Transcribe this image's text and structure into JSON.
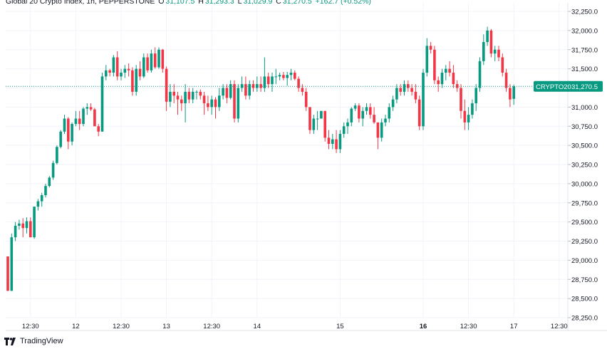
{
  "header": {
    "symbol_title": "Global 20 Crypto Index, 1h, PEPPERSTONE",
    "open_label": "O",
    "open_value": "31,107.5",
    "high_label": "H",
    "high_value": "31,293.3",
    "low_label": "L",
    "low_value": "31,029.9",
    "close_label": "C",
    "close_value": "31,270.5",
    "change": "+162.7 (+0.52%)"
  },
  "branding": {
    "name": "TradingView",
    "icon": "tradingview-logo-icon"
  },
  "price_tag": {
    "symbol": "CRYPTO20",
    "value": "31,270.5",
    "color": "#089981"
  },
  "colors": {
    "up": "#089981",
    "down": "#f23645",
    "grid": "#f0f3fa",
    "axis_text": "#131722"
  },
  "chart_data": {
    "type": "candlestick",
    "title": "Global 20 Crypto Index, 1h, PEPPERSTONE",
    "ylim": [
      28250,
      32250
    ],
    "y_ticks": [
      "32,250.0",
      "32,000.0",
      "31,750.0",
      "31,500.0",
      "31,250.0",
      "31,000.0",
      "30,750.0",
      "30,500.0",
      "30,250.0",
      "30,000.0",
      "29,750.0",
      "29,500.0",
      "29,250.0",
      "29,000.0",
      "28,750.0",
      "28,500.0",
      "28,250.0"
    ],
    "x_ticks": [
      {
        "label": "12:30",
        "bold": false,
        "bar": 6
      },
      {
        "label": "12",
        "bold": false,
        "bar": 18
      },
      {
        "label": "12:30",
        "bold": false,
        "bar": 30
      },
      {
        "label": "13",
        "bold": false,
        "bar": 42
      },
      {
        "label": "12:30",
        "bold": false,
        "bar": 54
      },
      {
        "label": "14",
        "bold": false,
        "bar": 66
      },
      {
        "label": "15",
        "bold": false,
        "bar": 88
      },
      {
        "label": "16",
        "bold": true,
        "bar": 110
      },
      {
        "label": "12:30",
        "bold": false,
        "bar": 122
      },
      {
        "label": "17",
        "bold": false,
        "bar": 134
      },
      {
        "label": "12:30",
        "bold": false,
        "bar": 146
      }
    ],
    "last_price": 31270.5,
    "candles": [
      [
        29050,
        29050,
        28600,
        28600
      ],
      [
        28600,
        29350,
        28600,
        29300
      ],
      [
        29300,
        29500,
        29250,
        29450
      ],
      [
        29450,
        29530,
        29400,
        29480
      ],
      [
        29480,
        29550,
        29300,
        29420
      ],
      [
        29420,
        29560,
        29350,
        29510
      ],
      [
        29510,
        29560,
        29300,
        29300
      ],
      [
        29300,
        29700,
        29280,
        29700
      ],
      [
        29700,
        29800,
        29650,
        29770
      ],
      [
        29770,
        29880,
        29700,
        29850
      ],
      [
        29850,
        30000,
        29820,
        29970
      ],
      [
        29970,
        30100,
        29950,
        30080
      ],
      [
        30080,
        30300,
        30050,
        30270
      ],
      [
        30270,
        30500,
        30250,
        30480
      ],
      [
        30480,
        30700,
        30460,
        30680
      ],
      [
        30680,
        30900,
        30650,
        30850
      ],
      [
        30850,
        30870,
        30450,
        30550
      ],
      [
        30550,
        30800,
        30500,
        30780
      ],
      [
        30780,
        30950,
        30750,
        30850
      ],
      [
        30850,
        30950,
        30700,
        30780
      ],
      [
        30780,
        31000,
        30750,
        30980
      ],
      [
        30980,
        31050,
        30900,
        31000
      ],
      [
        31000,
        31050,
        30950,
        30970
      ],
      [
        30970,
        30990,
        30750,
        30750
      ],
      [
        30750,
        30780,
        30620,
        30680
      ],
      [
        30680,
        31450,
        30680,
        31400
      ],
      [
        31400,
        31550,
        31350,
        31480
      ],
      [
        31480,
        31500,
        31400,
        31450
      ],
      [
        31450,
        31680,
        31400,
        31650
      ],
      [
        31650,
        31730,
        31350,
        31400
      ],
      [
        31400,
        31500,
        31350,
        31450
      ],
      [
        31450,
        31550,
        31380,
        31500
      ],
      [
        31500,
        31570,
        31400,
        31480
      ],
      [
        31480,
        31520,
        31150,
        31200
      ],
      [
        31200,
        31550,
        31150,
        31500
      ],
      [
        31500,
        31600,
        31350,
        31400
      ],
      [
        31400,
        31700,
        31380,
        31650
      ],
      [
        31650,
        31700,
        31450,
        31480
      ],
      [
        31480,
        31750,
        31450,
        31700
      ],
      [
        31700,
        31780,
        31500,
        31520
      ],
      [
        31520,
        31780,
        31500,
        31750
      ],
      [
        31750,
        31760,
        31450,
        31500
      ],
      [
        31500,
        31530,
        30950,
        31070
      ],
      [
        31070,
        31300,
        31000,
        31200
      ],
      [
        31200,
        31300,
        31050,
        31150
      ],
      [
        31150,
        31200,
        30900,
        31100
      ],
      [
        31100,
        31150,
        30950,
        31050
      ],
      [
        31050,
        31300,
        30800,
        31200
      ],
      [
        31200,
        31250,
        31050,
        31100
      ],
      [
        31100,
        31250,
        31050,
        31200
      ],
      [
        31200,
        31220,
        31100,
        31200
      ],
      [
        31200,
        31230,
        31100,
        31150
      ],
      [
        31150,
        31200,
        30900,
        31050
      ],
      [
        31050,
        31150,
        30950,
        31000
      ],
      [
        31000,
        31150,
        30900,
        31100
      ],
      [
        31100,
        31130,
        30850,
        31000
      ],
      [
        31000,
        31250,
        30950,
        31150
      ],
      [
        31150,
        31300,
        31100,
        31250
      ],
      [
        31250,
        31300,
        31050,
        31120
      ],
      [
        31120,
        31350,
        31100,
        31300
      ],
      [
        31300,
        31350,
        30800,
        30850
      ],
      [
        30850,
        31300,
        30800,
        31250
      ],
      [
        31250,
        31400,
        31200,
        31300
      ],
      [
        31300,
        31400,
        31100,
        31150
      ],
      [
        31150,
        31350,
        31100,
        31300
      ],
      [
        31300,
        31350,
        31200,
        31250
      ],
      [
        31250,
        31400,
        31200,
        31300
      ],
      [
        31300,
        31400,
        31200,
        31250
      ],
      [
        31250,
        31650,
        31200,
        31400
      ],
      [
        31400,
        31450,
        31250,
        31300
      ],
      [
        31300,
        31450,
        31200,
        31400
      ],
      [
        31400,
        31500,
        31300,
        31400
      ],
      [
        31400,
        31450,
        31350,
        31420
      ],
      [
        31420,
        31460,
        31350,
        31380
      ],
      [
        31380,
        31460,
        31280,
        31420
      ],
      [
        31420,
        31500,
        31350,
        31450
      ],
      [
        31450,
        31480,
        31350,
        31370
      ],
      [
        31370,
        31400,
        31200,
        31250
      ],
      [
        31250,
        31300,
        31150,
        31200
      ],
      [
        31200,
        31250,
        30950,
        31000
      ],
      [
        31000,
        31000,
        30650,
        30700
      ],
      [
        30700,
        30900,
        30650,
        30850
      ],
      [
        30850,
        30950,
        30700,
        30850
      ],
      [
        30850,
        30950,
        30850,
        30950
      ],
      [
        30950,
        30950,
        30550,
        30600
      ],
      [
        30600,
        30700,
        30450,
        30520
      ],
      [
        30520,
        30650,
        30450,
        30580
      ],
      [
        30580,
        30700,
        30400,
        30450
      ],
      [
        30450,
        30700,
        30400,
        30650
      ],
      [
        30650,
        30800,
        30600,
        30750
      ],
      [
        30750,
        30850,
        30650,
        30800
      ],
      [
        30800,
        31000,
        30750,
        30980
      ],
      [
        30980,
        31050,
        30950,
        31020
      ],
      [
        31020,
        31050,
        30800,
        30850
      ],
      [
        30850,
        31000,
        30750,
        30950
      ],
      [
        30950,
        31050,
        30900,
        31000
      ],
      [
        31000,
        31050,
        30850,
        30900
      ],
      [
        30900,
        31000,
        30780,
        30800
      ],
      [
        30800,
        30800,
        30450,
        30600
      ],
      [
        30600,
        30850,
        30550,
        30800
      ],
      [
        30800,
        30900,
        30750,
        30850
      ],
      [
        30850,
        31050,
        30800,
        31000
      ],
      [
        31000,
        31150,
        30950,
        31100
      ],
      [
        31100,
        31300,
        31050,
        31250
      ],
      [
        31250,
        31300,
        31150,
        31200
      ],
      [
        31200,
        31350,
        31150,
        31300
      ],
      [
        31300,
        31350,
        31200,
        31250
      ],
      [
        31250,
        31300,
        31150,
        31200
      ],
      [
        31200,
        31300,
        31050,
        31100
      ],
      [
        31100,
        31150,
        30700,
        30750
      ],
      [
        30750,
        31500,
        30700,
        31450
      ],
      [
        31450,
        31900,
        31400,
        31800
      ],
      [
        31800,
        31850,
        31700,
        31750
      ],
      [
        31750,
        31800,
        31300,
        31350
      ],
      [
        31350,
        31400,
        31200,
        31300
      ],
      [
        31300,
        31500,
        31250,
        31450
      ],
      [
        31450,
        31550,
        31350,
        31500
      ],
      [
        31500,
        31600,
        31400,
        31450
      ],
      [
        31450,
        31550,
        31250,
        31300
      ],
      [
        31300,
        31350,
        31200,
        31250
      ],
      [
        31250,
        31300,
        30850,
        30950
      ],
      [
        30950,
        31100,
        30700,
        30800
      ],
      [
        30800,
        31000,
        30700,
        30900
      ],
      [
        30900,
        31100,
        30850,
        31050
      ],
      [
        31050,
        31300,
        30950,
        31250
      ],
      [
        31250,
        31650,
        31200,
        31600
      ],
      [
        31600,
        31950,
        31550,
        31850
      ],
      [
        31850,
        32050,
        31800,
        32000
      ],
      [
        32000,
        32020,
        31650,
        31700
      ],
      [
        31700,
        31800,
        31600,
        31750
      ],
      [
        31750,
        31800,
        31600,
        31650
      ],
      [
        31650,
        31700,
        31400,
        31450
      ],
      [
        31450,
        31500,
        31200,
        31250
      ],
      [
        31250,
        31300,
        31000,
        31100
      ],
      [
        31107.5,
        31293.3,
        31029.9,
        31270.5
      ]
    ]
  }
}
